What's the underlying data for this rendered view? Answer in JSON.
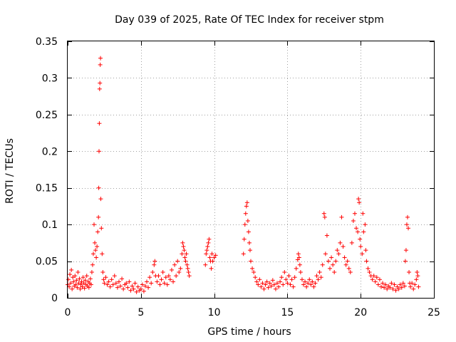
{
  "chart_data": {
    "type": "scatter",
    "title": "Day 039 of 2025, Rate Of TEC Index for receiver stpm",
    "xlabel": "GPS time / hours",
    "ylabel": "ROTI / TECUs",
    "xlim": [
      0,
      25
    ],
    "ylim": [
      0,
      0.35
    ],
    "xticks": [
      0,
      5,
      10,
      15,
      20,
      25
    ],
    "yticks": [
      0,
      0.05,
      0.1,
      0.15,
      0.2,
      0.25,
      0.3,
      0.35
    ],
    "xtick_labels": [
      "0",
      "5",
      "10",
      "15",
      "20",
      "25"
    ],
    "ytick_labels": [
      "0",
      "0.05",
      "0.1",
      "0.15",
      "0.2",
      "0.25",
      "0.3",
      "0.35"
    ],
    "grid": true,
    "marker": "+",
    "color": "#ff0000",
    "series": [
      {
        "points": [
          [
            0.0,
            0.018
          ],
          [
            0.05,
            0.025
          ],
          [
            0.1,
            0.015
          ],
          [
            0.15,
            0.032
          ],
          [
            0.2,
            0.02
          ],
          [
            0.25,
            0.038
          ],
          [
            0.3,
            0.012
          ],
          [
            0.35,
            0.028
          ],
          [
            0.4,
            0.022
          ],
          [
            0.45,
            0.016
          ],
          [
            0.5,
            0.03
          ],
          [
            0.55,
            0.018
          ],
          [
            0.6,
            0.024
          ],
          [
            0.65,
            0.014
          ],
          [
            0.7,
            0.035
          ],
          [
            0.75,
            0.02
          ],
          [
            0.8,
            0.026
          ],
          [
            0.85,
            0.012
          ],
          [
            0.9,
            0.018
          ],
          [
            0.95,
            0.022
          ],
          [
            1.0,
            0.015
          ],
          [
            1.05,
            0.028
          ],
          [
            1.1,
            0.02
          ],
          [
            1.15,
            0.013
          ],
          [
            1.2,
            0.024
          ],
          [
            1.25,
            0.018
          ],
          [
            1.3,
            0.03
          ],
          [
            1.35,
            0.016
          ],
          [
            1.4,
            0.022
          ],
          [
            1.45,
            0.014
          ],
          [
            1.5,
            0.02
          ],
          [
            1.55,
            0.026
          ],
          [
            1.6,
            0.018
          ],
          [
            1.65,
            0.035
          ],
          [
            1.7,
            0.045
          ],
          [
            1.75,
            0.06
          ],
          [
            1.8,
            0.1
          ],
          [
            1.85,
            0.075
          ],
          [
            1.9,
            0.065
          ],
          [
            1.95,
            0.055
          ],
          [
            2.0,
            0.07
          ],
          [
            2.05,
            0.09
          ],
          [
            2.1,
            0.11
          ],
          [
            2.12,
            0.15
          ],
          [
            2.14,
            0.2
          ],
          [
            2.16,
            0.238
          ],
          [
            2.18,
            0.285
          ],
          [
            2.2,
            0.293
          ],
          [
            2.22,
            0.318
          ],
          [
            2.24,
            0.327
          ],
          [
            2.26,
            0.135
          ],
          [
            2.3,
            0.095
          ],
          [
            2.35,
            0.06
          ],
          [
            2.4,
            0.035
          ],
          [
            2.45,
            0.025
          ],
          [
            2.5,
            0.02
          ],
          [
            2.6,
            0.028
          ],
          [
            2.7,
            0.018
          ],
          [
            2.8,
            0.022
          ],
          [
            2.9,
            0.015
          ],
          [
            3.0,
            0.025
          ],
          [
            3.1,
            0.018
          ],
          [
            3.2,
            0.03
          ],
          [
            3.3,
            0.02
          ],
          [
            3.4,
            0.014
          ],
          [
            3.5,
            0.022
          ],
          [
            3.6,
            0.016
          ],
          [
            3.7,
            0.026
          ],
          [
            3.8,
            0.012
          ],
          [
            3.9,
            0.018
          ],
          [
            4.0,
            0.02
          ],
          [
            4.1,
            0.014
          ],
          [
            4.2,
            0.022
          ],
          [
            4.3,
            0.01
          ],
          [
            4.4,
            0.016
          ],
          [
            4.5,
            0.012
          ],
          [
            4.6,
            0.02
          ],
          [
            4.7,
            0.008
          ],
          [
            4.8,
            0.015
          ],
          [
            4.9,
            0.01
          ],
          [
            5.0,
            0.012
          ],
          [
            5.1,
            0.018
          ],
          [
            5.2,
            0.009
          ],
          [
            5.3,
            0.016
          ],
          [
            5.4,
            0.022
          ],
          [
            5.5,
            0.014
          ],
          [
            5.6,
            0.028
          ],
          [
            5.7,
            0.02
          ],
          [
            5.8,
            0.035
          ],
          [
            5.9,
            0.045
          ],
          [
            5.95,
            0.05
          ],
          [
            6.0,
            0.03
          ],
          [
            6.1,
            0.022
          ],
          [
            6.2,
            0.03
          ],
          [
            6.3,
            0.018
          ],
          [
            6.4,
            0.025
          ],
          [
            6.5,
            0.035
          ],
          [
            6.6,
            0.02
          ],
          [
            6.7,
            0.028
          ],
          [
            6.8,
            0.018
          ],
          [
            6.9,
            0.03
          ],
          [
            7.0,
            0.025
          ],
          [
            7.1,
            0.038
          ],
          [
            7.2,
            0.022
          ],
          [
            7.3,
            0.045
          ],
          [
            7.4,
            0.03
          ],
          [
            7.5,
            0.05
          ],
          [
            7.6,
            0.035
          ],
          [
            7.7,
            0.04
          ],
          [
            7.8,
            0.06
          ],
          [
            7.85,
            0.075
          ],
          [
            7.9,
            0.07
          ],
          [
            7.95,
            0.065
          ],
          [
            8.0,
            0.055
          ],
          [
            8.05,
            0.05
          ],
          [
            8.1,
            0.06
          ],
          [
            8.15,
            0.045
          ],
          [
            8.2,
            0.04
          ],
          [
            8.25,
            0.035
          ],
          [
            8.3,
            0.03
          ],
          [
            9.4,
            0.045
          ],
          [
            9.45,
            0.06
          ],
          [
            9.5,
            0.065
          ],
          [
            9.55,
            0.07
          ],
          [
            9.6,
            0.075
          ],
          [
            9.65,
            0.08
          ],
          [
            9.7,
            0.055
          ],
          [
            9.75,
            0.05
          ],
          [
            9.8,
            0.04
          ],
          [
            9.85,
            0.06
          ],
          [
            9.9,
            0.05
          ],
          [
            10.0,
            0.055
          ],
          [
            10.1,
            0.058
          ],
          [
            12.0,
            0.06
          ],
          [
            12.05,
            0.08
          ],
          [
            12.1,
            0.1
          ],
          [
            12.15,
            0.115
          ],
          [
            12.2,
            0.125
          ],
          [
            12.25,
            0.13
          ],
          [
            12.3,
            0.105
          ],
          [
            12.35,
            0.09
          ],
          [
            12.4,
            0.075
          ],
          [
            12.45,
            0.065
          ],
          [
            12.5,
            0.05
          ],
          [
            12.6,
            0.04
          ],
          [
            12.7,
            0.035
          ],
          [
            12.8,
            0.028
          ],
          [
            12.9,
            0.022
          ],
          [
            13.0,
            0.018
          ],
          [
            13.1,
            0.025
          ],
          [
            13.2,
            0.015
          ],
          [
            13.3,
            0.02
          ],
          [
            13.4,
            0.012
          ],
          [
            13.5,
            0.018
          ],
          [
            13.6,
            0.022
          ],
          [
            13.7,
            0.014
          ],
          [
            13.8,
            0.02
          ],
          [
            13.9,
            0.016
          ],
          [
            14.0,
            0.024
          ],
          [
            14.1,
            0.018
          ],
          [
            14.2,
            0.012
          ],
          [
            14.3,
            0.02
          ],
          [
            14.4,
            0.015
          ],
          [
            14.5,
            0.022
          ],
          [
            14.6,
            0.028
          ],
          [
            14.7,
            0.018
          ],
          [
            14.8,
            0.035
          ],
          [
            14.9,
            0.025
          ],
          [
            15.0,
            0.02
          ],
          [
            15.1,
            0.03
          ],
          [
            15.2,
            0.018
          ],
          [
            15.3,
            0.025
          ],
          [
            15.4,
            0.015
          ],
          [
            15.5,
            0.028
          ],
          [
            15.6,
            0.04
          ],
          [
            15.7,
            0.052
          ],
          [
            15.75,
            0.06
          ],
          [
            15.8,
            0.055
          ],
          [
            15.85,
            0.045
          ],
          [
            15.9,
            0.035
          ],
          [
            16.0,
            0.025
          ],
          [
            16.1,
            0.018
          ],
          [
            16.2,
            0.022
          ],
          [
            16.3,
            0.015
          ],
          [
            16.4,
            0.02
          ],
          [
            16.5,
            0.025
          ],
          [
            16.6,
            0.018
          ],
          [
            16.7,
            0.022
          ],
          [
            16.8,
            0.015
          ],
          [
            16.9,
            0.02
          ],
          [
            17.0,
            0.03
          ],
          [
            17.1,
            0.025
          ],
          [
            17.2,
            0.035
          ],
          [
            17.3,
            0.028
          ],
          [
            17.4,
            0.045
          ],
          [
            17.5,
            0.115
          ],
          [
            17.55,
            0.11
          ],
          [
            17.6,
            0.06
          ],
          [
            17.7,
            0.085
          ],
          [
            17.8,
            0.05
          ],
          [
            17.9,
            0.04
          ],
          [
            18.0,
            0.055
          ],
          [
            18.1,
            0.045
          ],
          [
            18.2,
            0.035
          ],
          [
            18.3,
            0.05
          ],
          [
            18.4,
            0.065
          ],
          [
            18.5,
            0.06
          ],
          [
            18.6,
            0.075
          ],
          [
            18.7,
            0.11
          ],
          [
            18.8,
            0.07
          ],
          [
            18.9,
            0.055
          ],
          [
            19.0,
            0.045
          ],
          [
            19.1,
            0.05
          ],
          [
            19.2,
            0.04
          ],
          [
            19.3,
            0.035
          ],
          [
            19.4,
            0.075
          ],
          [
            19.5,
            0.105
          ],
          [
            19.6,
            0.115
          ],
          [
            19.7,
            0.095
          ],
          [
            19.8,
            0.09
          ],
          [
            19.85,
            0.135
          ],
          [
            19.9,
            0.13
          ],
          [
            19.95,
            0.08
          ],
          [
            20.0,
            0.07
          ],
          [
            20.1,
            0.06
          ],
          [
            20.15,
            0.115
          ],
          [
            20.2,
            0.09
          ],
          [
            20.3,
            0.1
          ],
          [
            20.35,
            0.065
          ],
          [
            20.4,
            0.05
          ],
          [
            20.5,
            0.04
          ],
          [
            20.6,
            0.035
          ],
          [
            20.7,
            0.03
          ],
          [
            20.8,
            0.025
          ],
          [
            20.9,
            0.03
          ],
          [
            21.0,
            0.022
          ],
          [
            21.1,
            0.028
          ],
          [
            21.2,
            0.018
          ],
          [
            21.3,
            0.025
          ],
          [
            21.4,
            0.015
          ],
          [
            21.5,
            0.02
          ],
          [
            21.6,
            0.014
          ],
          [
            21.7,
            0.018
          ],
          [
            21.8,
            0.012
          ],
          [
            21.9,
            0.016
          ],
          [
            22.0,
            0.014
          ],
          [
            22.1,
            0.02
          ],
          [
            22.2,
            0.012
          ],
          [
            22.3,
            0.018
          ],
          [
            22.4,
            0.01
          ],
          [
            22.5,
            0.015
          ],
          [
            22.6,
            0.012
          ],
          [
            22.7,
            0.018
          ],
          [
            22.8,
            0.014
          ],
          [
            22.9,
            0.02
          ],
          [
            23.0,
            0.016
          ],
          [
            23.05,
            0.05
          ],
          [
            23.1,
            0.065
          ],
          [
            23.15,
            0.1
          ],
          [
            23.2,
            0.11
          ],
          [
            23.25,
            0.095
          ],
          [
            23.3,
            0.035
          ],
          [
            23.35,
            0.02
          ],
          [
            23.4,
            0.015
          ],
          [
            23.5,
            0.02
          ],
          [
            23.6,
            0.012
          ],
          [
            23.7,
            0.018
          ],
          [
            23.8,
            0.025
          ],
          [
            23.85,
            0.035
          ],
          [
            23.9,
            0.03
          ],
          [
            23.95,
            0.015
          ]
        ]
      }
    ]
  }
}
